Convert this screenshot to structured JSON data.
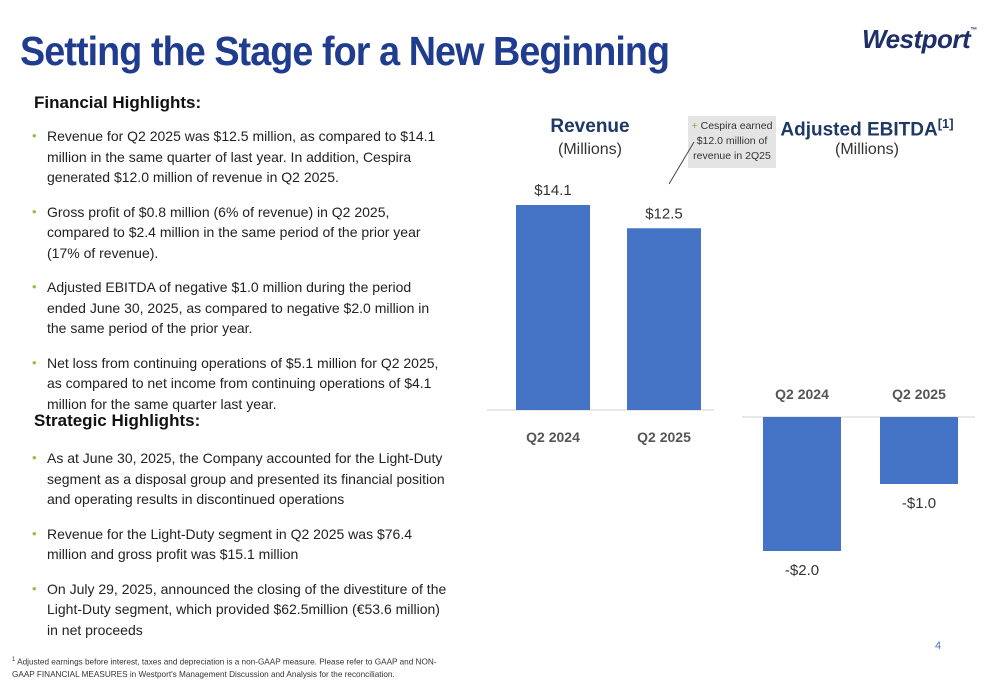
{
  "header": {
    "title": "Setting the Stage for a New Beginning",
    "logo": "Westport",
    "logo_tm": "™"
  },
  "financial": {
    "heading": "Financial Highlights:",
    "bullets": [
      "Revenue for Q2 2025 was $12.5 million, as compared to $14.1 million in the same quarter of last year. In addition, Cespira generated $12.0 million of revenue in Q2 2025.",
      "Gross profit of $0.8 million (6% of revenue) in Q2 2025, compared to $2.4 million in the same period of the prior year (17% of revenue).",
      "Adjusted EBITDA of negative $1.0 million during the period ended June 30, 2025, as compared to negative $2.0 million in the same period of the prior year.",
      "Net loss from continuing operations of $5.1 million for Q2 2025, as compared to net income from continuing operations of $4.1 million for the same quarter last year."
    ]
  },
  "strategic": {
    "heading": "Strategic Highlights:",
    "bullets": [
      "As at June 30, 2025, the Company accounted for the Light-Duty segment as a disposal group and presented its financial position and operating results in discontinued operations",
      "Revenue for the Light-Duty segment in Q2 2025 was $76.4 million and gross profit was $15.1 million",
      "On July 29, 2025, announced the closing of the divestiture of the Light-Duty segment, which provided $62.5million (€53.6 million) in net proceeds"
    ]
  },
  "bullet_marker": "•",
  "callout": {
    "plus": "+",
    "text": "Cespira earned $12.0 million of revenue in 2Q25"
  },
  "footnote": {
    "marker": "1",
    "text": "Adjusted earnings before interest, taxes and depreciation is a non-GAAP measure. Please refer to GAAP and NON-GAAP FINANCIAL MEASURES in Westport's Management Discussion and Analysis for the reconciliation."
  },
  "page_number": "4",
  "colors": {
    "bar": "#4472c4",
    "title": "#1f3c8f",
    "bullet": "#8fc148"
  },
  "chart_data": [
    {
      "type": "bar",
      "title": "Revenue",
      "subtitle": "(Millions)",
      "categories": [
        "Q2 2024",
        "Q2 2025"
      ],
      "values": [
        14.1,
        12.5
      ],
      "labels": [
        "$14.1",
        "$12.5"
      ],
      "ylim": [
        0,
        14.1
      ],
      "grid": false
    },
    {
      "type": "bar",
      "title": "Adjusted EBITDA",
      "title_sup": "[1]",
      "subtitle": "(Millions)",
      "categories": [
        "Q2 2024",
        "Q2 2025"
      ],
      "values": [
        -2.0,
        -1.0
      ],
      "labels": [
        "-$2.0",
        "-$1.0"
      ],
      "ylim": [
        -2.0,
        0
      ],
      "grid": false
    }
  ]
}
